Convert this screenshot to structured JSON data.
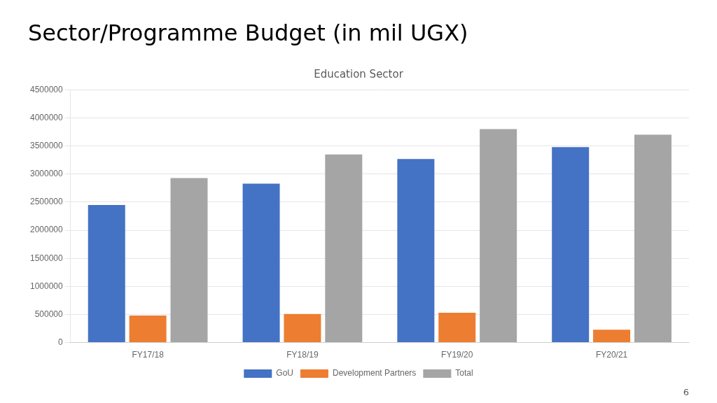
{
  "chart_data": {
    "type": "bar",
    "title": "Sector/Programme Budget (in mil UGX)",
    "subtitle": "Education Sector",
    "categories": [
      "FY17/18",
      "FY18/19",
      "FY19/20",
      "FY20/21"
    ],
    "series": [
      {
        "name": "GoU",
        "color": "#4472C4",
        "values": [
          2450000,
          2830000,
          3270000,
          3480000
        ]
      },
      {
        "name": "Development Partners",
        "color": "#ED7D31",
        "values": [
          480000,
          510000,
          530000,
          230000
        ]
      },
      {
        "name": "Total",
        "color": "#A5A5A5",
        "values": [
          2930000,
          3350000,
          3800000,
          3700000
        ]
      }
    ],
    "ylim": [
      0,
      4500000
    ],
    "yticks": [
      0,
      500000,
      1000000,
      1500000,
      2000000,
      2500000,
      3000000,
      3500000,
      4000000,
      4500000
    ],
    "grid": true,
    "legend": "bottom",
    "annotations": [
      {
        "text": "6"
      }
    ]
  }
}
